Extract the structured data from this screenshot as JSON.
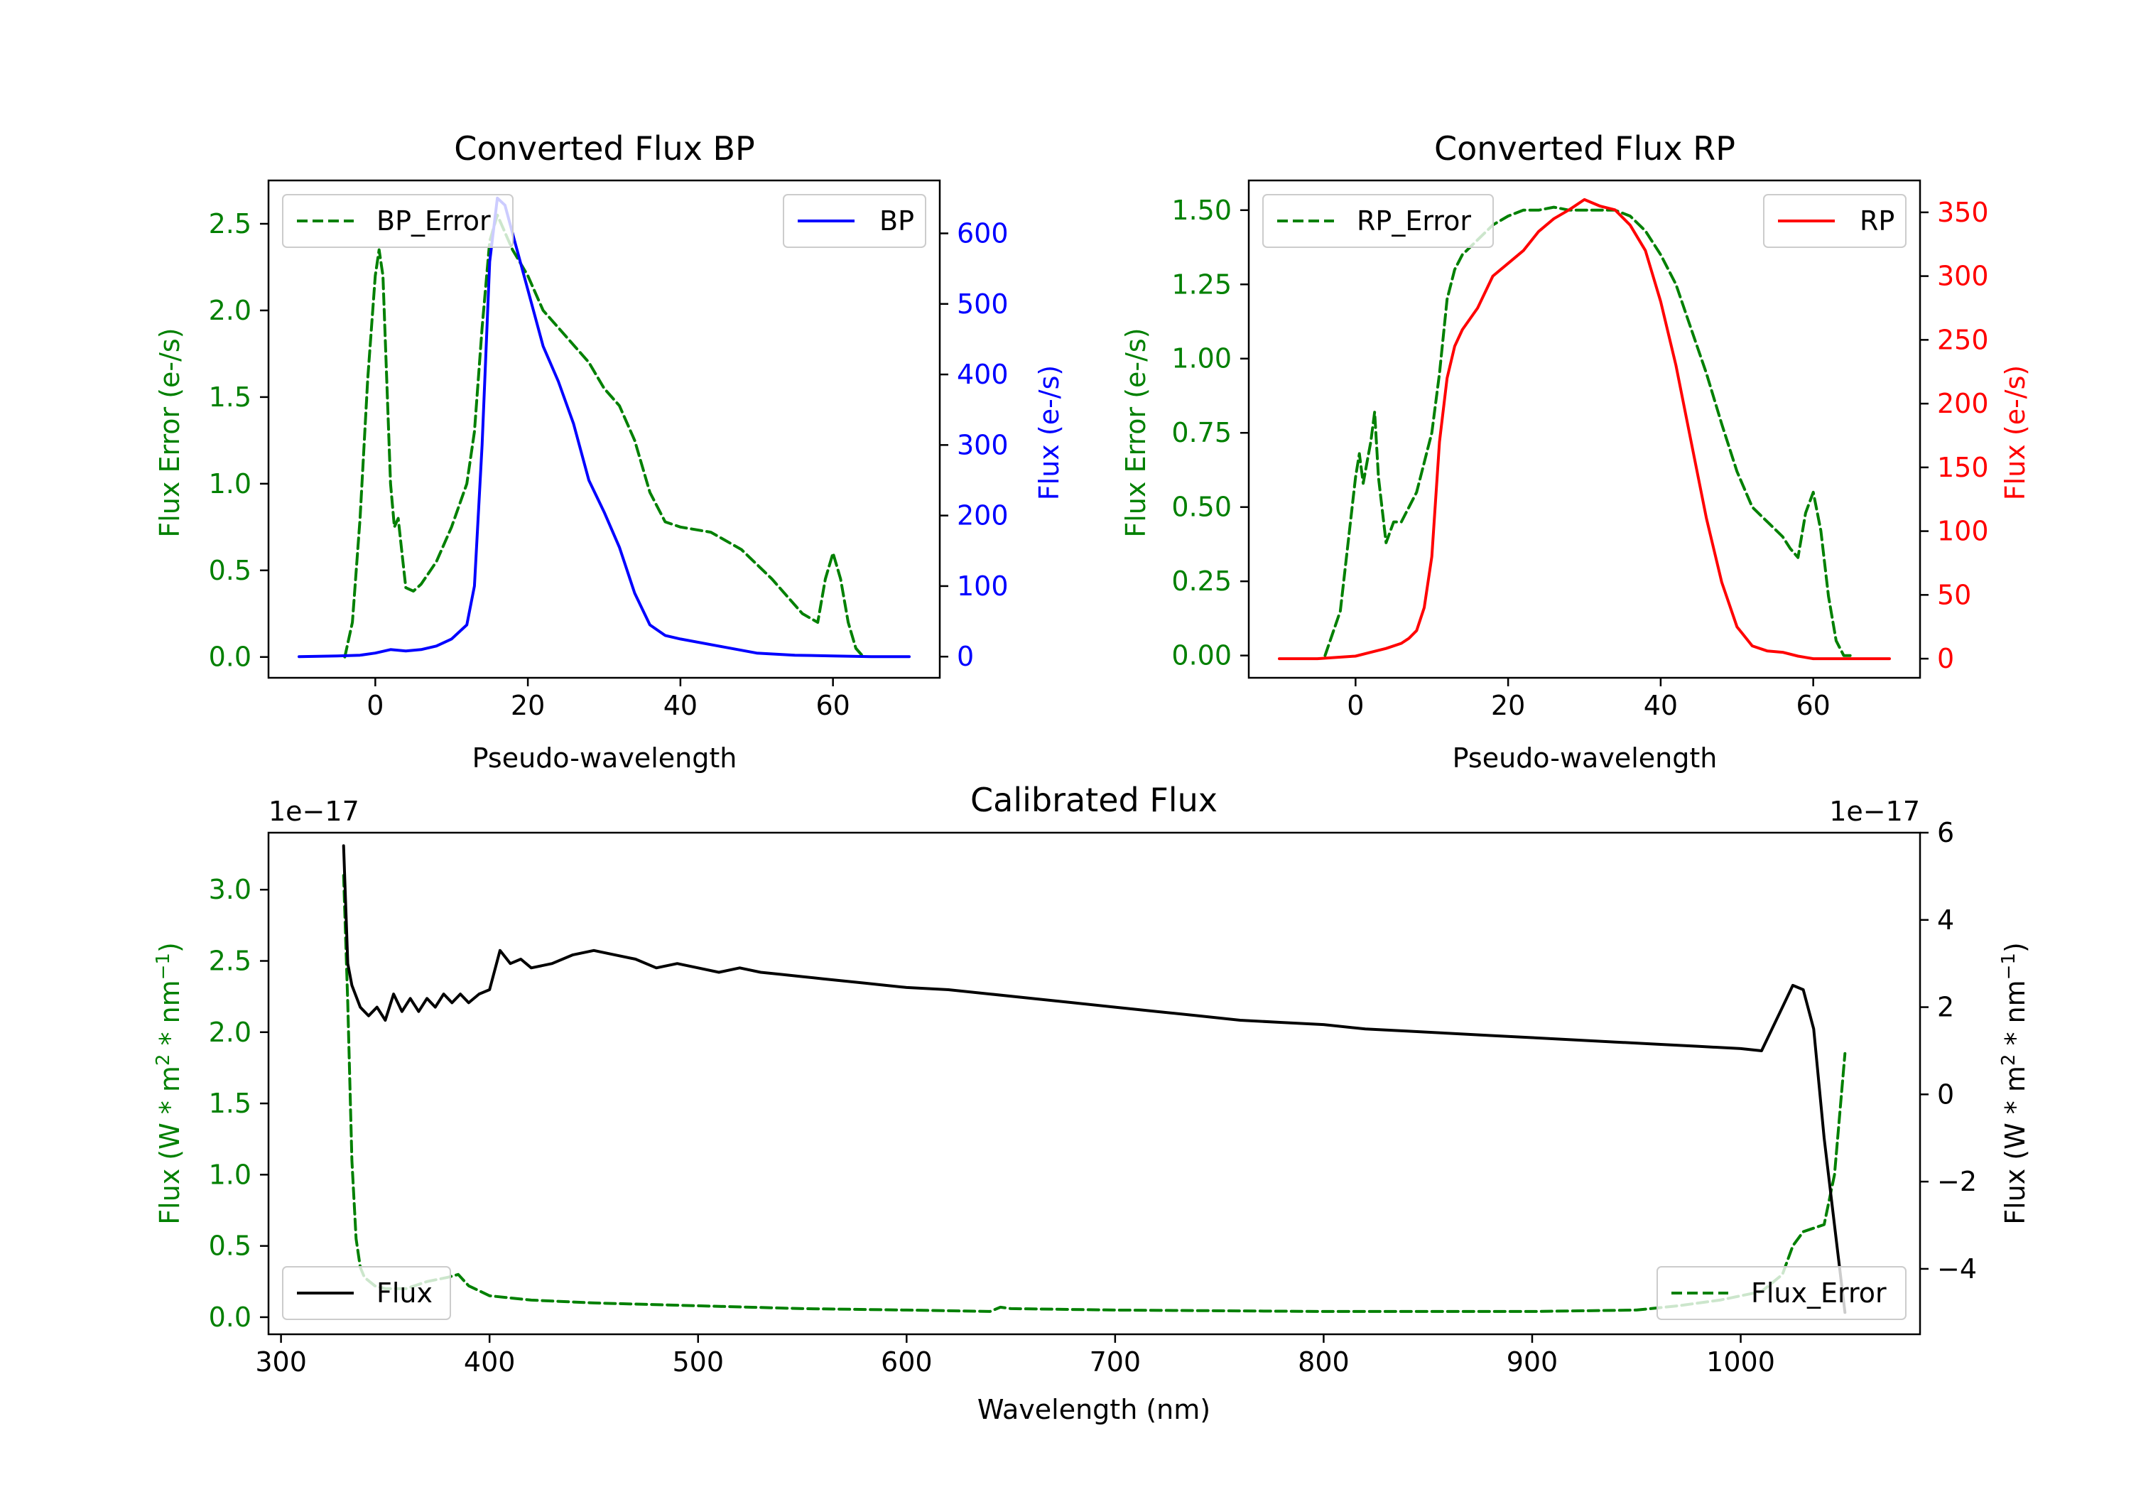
{
  "colors": {
    "bp": "#0000ff",
    "rp": "#ff0000",
    "error": "#008000",
    "flux": "#000000",
    "axis": "#000000"
  },
  "chart_data": [
    {
      "id": "bp",
      "type": "line",
      "title": "Converted Flux BP",
      "xlabel": "Pseudo-wavelength",
      "xlim": [
        -14,
        74
      ],
      "xticks": [
        0,
        20,
        40,
        60
      ],
      "xtick_labels": [
        "0",
        "20",
        "40",
        "60"
      ],
      "left_axis": {
        "label": "Flux Error (e-/s)",
        "ylim": [
          -0.12,
          2.75
        ],
        "ticks": [
          0.0,
          0.5,
          1.0,
          1.5,
          2.0,
          2.5
        ],
        "tick_labels": [
          "0.0",
          "0.5",
          "1.0",
          "1.5",
          "2.0",
          "2.5"
        ]
      },
      "right_axis": {
        "label": "Flux (e-/s)",
        "ylim": [
          -30,
          675
        ],
        "ticks": [
          0,
          100,
          200,
          300,
          400,
          500,
          600
        ],
        "tick_labels": [
          "0",
          "100",
          "200",
          "300",
          "400",
          "500",
          "600"
        ]
      },
      "series": [
        {
          "name": "BP_Error",
          "axis": "left",
          "style": "dashed",
          "x": [
            -4,
            -3,
            -2,
            -1,
            0,
            0.5,
            1,
            2,
            2.5,
            3,
            3.5,
            4,
            5,
            6,
            8,
            10,
            12,
            13,
            14,
            15,
            16,
            17,
            18,
            20,
            22,
            24,
            26,
            28,
            30,
            32,
            34,
            36,
            38,
            40,
            44,
            48,
            52,
            54,
            56,
            58,
            59,
            60,
            61,
            62,
            63,
            64
          ],
          "y": [
            0.0,
            0.2,
            0.8,
            1.6,
            2.2,
            2.35,
            2.2,
            1.0,
            0.75,
            0.8,
            0.6,
            0.4,
            0.38,
            0.42,
            0.55,
            0.75,
            1.0,
            1.3,
            1.9,
            2.4,
            2.55,
            2.45,
            2.35,
            2.2,
            2.0,
            1.9,
            1.8,
            1.7,
            1.55,
            1.45,
            1.25,
            0.95,
            0.78,
            0.75,
            0.72,
            0.62,
            0.45,
            0.35,
            0.25,
            0.2,
            0.45,
            0.6,
            0.45,
            0.2,
            0.05,
            0.0
          ]
        },
        {
          "name": "BP",
          "axis": "right",
          "style": "solid",
          "x": [
            -10,
            -5,
            -2,
            0,
            2,
            4,
            6,
            8,
            10,
            12,
            13,
            14,
            15,
            16,
            17,
            18,
            20,
            22,
            24,
            26,
            28,
            30,
            32,
            34,
            36,
            38,
            40,
            45,
            50,
            55,
            60,
            65,
            70
          ],
          "y": [
            0,
            1,
            2,
            5,
            10,
            8,
            10,
            15,
            25,
            45,
            100,
            300,
            560,
            650,
            640,
            600,
            520,
            440,
            390,
            330,
            250,
            205,
            155,
            90,
            45,
            30,
            25,
            15,
            5,
            2,
            1,
            0,
            0
          ]
        }
      ],
      "legends": [
        {
          "name": "BP_Error",
          "position": "upper left"
        },
        {
          "name": "BP",
          "position": "upper right"
        }
      ]
    },
    {
      "id": "rp",
      "type": "line",
      "title": "Converted Flux RP",
      "xlabel": "Pseudo-wavelength",
      "xlim": [
        -14,
        74
      ],
      "xticks": [
        0,
        20,
        40,
        60
      ],
      "xtick_labels": [
        "0",
        "20",
        "40",
        "60"
      ],
      "left_axis": {
        "label": "Flux Error (e-/s)",
        "ylim": [
          -0.075,
          1.6
        ],
        "ticks": [
          0.0,
          0.25,
          0.5,
          0.75,
          1.0,
          1.25,
          1.5
        ],
        "tick_labels": [
          "0.00",
          "0.25",
          "0.50",
          "0.75",
          "1.00",
          "1.25",
          "1.50"
        ]
      },
      "right_axis": {
        "label": "Flux (e-/s)",
        "ylim": [
          -15,
          375
        ],
        "ticks": [
          0,
          50,
          100,
          150,
          200,
          250,
          300,
          350
        ],
        "tick_labels": [
          "0",
          "50",
          "100",
          "150",
          "200",
          "250",
          "300",
          "350"
        ]
      },
      "series": [
        {
          "name": "RP_Error",
          "axis": "left",
          "style": "dashed",
          "x": [
            -4,
            -2,
            0,
            0.5,
            1,
            1.5,
            2,
            2.5,
            3,
            4,
            5,
            6,
            8,
            10,
            11,
            12,
            13,
            14,
            16,
            18,
            20,
            22,
            24,
            26,
            28,
            30,
            32,
            34,
            36,
            38,
            40,
            42,
            44,
            46,
            48,
            50,
            52,
            54,
            56,
            57,
            58,
            59,
            60,
            61,
            62,
            63,
            64,
            65
          ],
          "y": [
            0.0,
            0.15,
            0.6,
            0.68,
            0.58,
            0.65,
            0.72,
            0.82,
            0.6,
            0.38,
            0.45,
            0.45,
            0.55,
            0.75,
            0.95,
            1.2,
            1.3,
            1.35,
            1.4,
            1.45,
            1.48,
            1.5,
            1.5,
            1.51,
            1.5,
            1.5,
            1.5,
            1.5,
            1.48,
            1.43,
            1.35,
            1.25,
            1.1,
            0.95,
            0.78,
            0.62,
            0.5,
            0.45,
            0.4,
            0.36,
            0.33,
            0.48,
            0.55,
            0.42,
            0.2,
            0.05,
            0.0,
            0.0
          ]
        },
        {
          "name": "RP",
          "axis": "right",
          "style": "solid",
          "x": [
            -10,
            -5,
            0,
            2,
            4,
            6,
            7,
            8,
            9,
            10,
            11,
            12,
            13,
            14,
            16,
            18,
            20,
            22,
            24,
            26,
            28,
            30,
            32,
            34,
            36,
            38,
            40,
            42,
            44,
            46,
            48,
            50,
            52,
            54,
            56,
            58,
            60,
            65,
            70
          ],
          "y": [
            0,
            0,
            2,
            5,
            8,
            12,
            16,
            22,
            40,
            80,
            170,
            220,
            245,
            258,
            275,
            300,
            310,
            320,
            335,
            345,
            352,
            360,
            355,
            352,
            340,
            320,
            280,
            230,
            170,
            110,
            60,
            25,
            10,
            6,
            5,
            2,
            0,
            0,
            0
          ]
        }
      ],
      "legends": [
        {
          "name": "RP_Error",
          "position": "upper left"
        },
        {
          "name": "RP",
          "position": "upper right"
        }
      ]
    },
    {
      "id": "cal",
      "type": "line",
      "title": "Calibrated Flux",
      "xlabel": "Wavelength (nm)",
      "xlim": [
        294,
        1086
      ],
      "xticks": [
        300,
        400,
        500,
        600,
        700,
        800,
        900,
        1000
      ],
      "xtick_labels": [
        "300",
        "400",
        "500",
        "600",
        "700",
        "800",
        "900",
        "1000"
      ],
      "left_axis": {
        "label_parts": [
          "Flux (W * m",
          "2",
          " * nm",
          "−1",
          ")"
        ],
        "offset_text": "1e−17",
        "ylim": [
          -0.12,
          3.4
        ],
        "ticks": [
          0.0,
          0.5,
          1.0,
          1.5,
          2.0,
          2.5,
          3.0
        ],
        "tick_labels": [
          "0.0",
          "0.5",
          "1.0",
          "1.5",
          "2.0",
          "2.5",
          "3.0"
        ]
      },
      "right_axis": {
        "label_parts": [
          "Flux (W * m",
          "2",
          " * nm",
          "−1",
          ")"
        ],
        "offset_text": "1e−17",
        "ylim": [
          -5.5,
          6.0
        ],
        "ticks": [
          -4,
          -2,
          0,
          2,
          4,
          6
        ],
        "tick_labels": [
          "−4",
          "−2",
          "0",
          "2",
          "4",
          "6"
        ]
      },
      "series": [
        {
          "name": "Flux_Error",
          "axis": "left",
          "style": "dashed",
          "x": [
            330,
            332,
            334,
            336,
            338,
            340,
            345,
            350,
            360,
            370,
            380,
            385,
            390,
            400,
            420,
            450,
            500,
            550,
            600,
            640,
            645,
            650,
            700,
            800,
            900,
            950,
            970,
            990,
            1010,
            1020,
            1025,
            1030,
            1040,
            1045,
            1050
          ],
          "y": [
            3.1,
            2.2,
            1.1,
            0.55,
            0.35,
            0.28,
            0.22,
            0.2,
            0.2,
            0.25,
            0.28,
            0.3,
            0.22,
            0.15,
            0.12,
            0.1,
            0.08,
            0.06,
            0.05,
            0.04,
            0.07,
            0.06,
            0.05,
            0.04,
            0.04,
            0.05,
            0.08,
            0.12,
            0.18,
            0.3,
            0.5,
            0.6,
            0.65,
            1.0,
            1.85
          ]
        },
        {
          "name": "Flux",
          "axis": "right",
          "style": "solid",
          "x": [
            330,
            332,
            334,
            338,
            342,
            346,
            350,
            354,
            358,
            362,
            366,
            370,
            374,
            378,
            382,
            386,
            390,
            395,
            400,
            405,
            410,
            415,
            420,
            430,
            440,
            450,
            460,
            470,
            480,
            490,
            500,
            510,
            520,
            530,
            540,
            550,
            560,
            570,
            580,
            590,
            600,
            620,
            640,
            660,
            680,
            700,
            720,
            740,
            760,
            780,
            800,
            820,
            840,
            860,
            880,
            900,
            920,
            940,
            960,
            980,
            1000,
            1010,
            1020,
            1025,
            1030,
            1035,
            1040,
            1045,
            1050
          ],
          "y": [
            5.7,
            3.0,
            2.5,
            2.0,
            1.8,
            2.0,
            1.7,
            2.3,
            1.9,
            2.2,
            1.9,
            2.2,
            2.0,
            2.3,
            2.1,
            2.3,
            2.1,
            2.3,
            2.4,
            3.3,
            3.0,
            3.1,
            2.9,
            3.0,
            3.2,
            3.3,
            3.2,
            3.1,
            2.9,
            3.0,
            2.9,
            2.8,
            2.9,
            2.8,
            2.75,
            2.7,
            2.65,
            2.6,
            2.55,
            2.5,
            2.45,
            2.4,
            2.3,
            2.2,
            2.1,
            2.0,
            1.9,
            1.8,
            1.7,
            1.65,
            1.6,
            1.5,
            1.45,
            1.4,
            1.35,
            1.3,
            1.25,
            1.2,
            1.15,
            1.1,
            1.05,
            1.0,
            2.0,
            2.5,
            2.4,
            1.5,
            -1.0,
            -3.0,
            -5.0
          ]
        }
      ],
      "legends": [
        {
          "name": "Flux",
          "position": "lower left"
        },
        {
          "name": "Flux_Error",
          "position": "lower right"
        }
      ]
    }
  ]
}
